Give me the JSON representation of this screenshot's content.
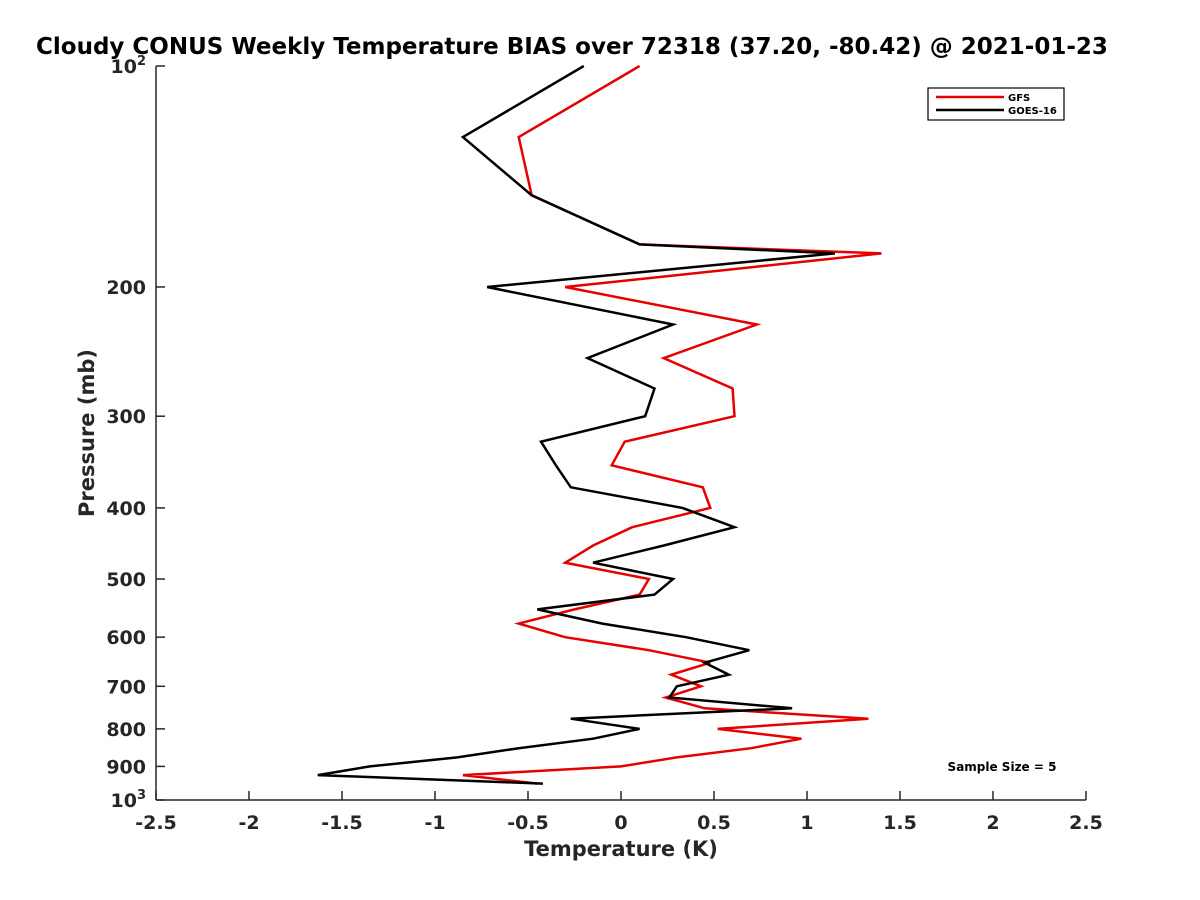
{
  "chart_data": {
    "type": "line",
    "title": "Cloudy CONUS Weekly Temperature BIAS over 72318 (37.20, -80.42) @ 2021-01-23",
    "xlabel": "Temperature (K)",
    "ylabel": "Pressure (mb)",
    "xlim": [
      -2.5,
      2.5
    ],
    "ylim": [
      100,
      1000
    ],
    "yscale": "log",
    "y_reversed": true,
    "x_ticks": [
      -2.5,
      -2,
      -1.5,
      -1,
      -0.5,
      0,
      0.5,
      1,
      1.5,
      2,
      2.5
    ],
    "x_tick_labels": [
      "-2.5",
      "-2",
      "-1.5",
      "-1",
      "-0.5",
      "0",
      "0.5",
      "1",
      "1.5",
      "2",
      "2.5"
    ],
    "y_ticks": [
      100,
      200,
      300,
      400,
      500,
      600,
      700,
      800,
      900,
      1000
    ],
    "y_tick_labels": [
      {
        "base": "10",
        "exp": "2"
      },
      {
        "base": "200"
      },
      {
        "base": "300"
      },
      {
        "base": "400"
      },
      {
        "base": "500"
      },
      {
        "base": "600"
      },
      {
        "base": "700"
      },
      {
        "base": "800"
      },
      {
        "base": "900"
      },
      {
        "base": "10",
        "exp": "3"
      }
    ],
    "grid": false,
    "legend_position": "top-right",
    "annotation": "Sample Size = 5",
    "series": [
      {
        "name": "GFS",
        "color": "#e60000",
        "points": [
          {
            "x": 0.1,
            "p": 100
          },
          {
            "x": -0.55,
            "p": 125
          },
          {
            "x": -0.48,
            "p": 150
          },
          {
            "x": 0.1,
            "p": 175
          },
          {
            "x": 1.4,
            "p": 180
          },
          {
            "x": -0.3,
            "p": 200
          },
          {
            "x": 0.73,
            "p": 225
          },
          {
            "x": 0.23,
            "p": 250
          },
          {
            "x": 0.6,
            "p": 275
          },
          {
            "x": 0.61,
            "p": 300
          },
          {
            "x": 0.02,
            "p": 325
          },
          {
            "x": -0.05,
            "p": 350
          },
          {
            "x": 0.44,
            "p": 375
          },
          {
            "x": 0.48,
            "p": 400
          },
          {
            "x": 0.06,
            "p": 425
          },
          {
            "x": -0.15,
            "p": 450
          },
          {
            "x": -0.3,
            "p": 475
          },
          {
            "x": 0.15,
            "p": 500
          },
          {
            "x": 0.1,
            "p": 525
          },
          {
            "x": -0.25,
            "p": 550
          },
          {
            "x": -0.55,
            "p": 575
          },
          {
            "x": -0.3,
            "p": 600
          },
          {
            "x": 0.15,
            "p": 625
          },
          {
            "x": 0.48,
            "p": 650
          },
          {
            "x": 0.27,
            "p": 675
          },
          {
            "x": 0.43,
            "p": 700
          },
          {
            "x": 0.24,
            "p": 725
          },
          {
            "x": 0.45,
            "p": 750
          },
          {
            "x": 1.33,
            "p": 775
          },
          {
            "x": 0.52,
            "p": 800
          },
          {
            "x": 0.97,
            "p": 825
          },
          {
            "x": 0.7,
            "p": 850
          },
          {
            "x": 0.3,
            "p": 875
          },
          {
            "x": 0.0,
            "p": 900
          },
          {
            "x": -0.85,
            "p": 925
          },
          {
            "x": -0.45,
            "p": 950
          }
        ]
      },
      {
        "name": "GOES-16",
        "color": "#000000",
        "points": [
          {
            "x": -0.2,
            "p": 100
          },
          {
            "x": -0.85,
            "p": 125
          },
          {
            "x": -0.48,
            "p": 150
          },
          {
            "x": 0.1,
            "p": 175
          },
          {
            "x": 1.15,
            "p": 180
          },
          {
            "x": -0.72,
            "p": 200
          },
          {
            "x": 0.28,
            "p": 225
          },
          {
            "x": -0.18,
            "p": 250
          },
          {
            "x": 0.18,
            "p": 275
          },
          {
            "x": 0.13,
            "p": 300
          },
          {
            "x": -0.43,
            "p": 325
          },
          {
            "x": -0.35,
            "p": 350
          },
          {
            "x": -0.27,
            "p": 375
          },
          {
            "x": 0.33,
            "p": 400
          },
          {
            "x": 0.61,
            "p": 425
          },
          {
            "x": 0.23,
            "p": 450
          },
          {
            "x": -0.15,
            "p": 475
          },
          {
            "x": 0.28,
            "p": 500
          },
          {
            "x": 0.18,
            "p": 525
          },
          {
            "x": -0.45,
            "p": 550
          },
          {
            "x": -0.1,
            "p": 575
          },
          {
            "x": 0.35,
            "p": 600
          },
          {
            "x": 0.69,
            "p": 625
          },
          {
            "x": 0.45,
            "p": 650
          },
          {
            "x": 0.58,
            "p": 675
          },
          {
            "x": 0.3,
            "p": 700
          },
          {
            "x": 0.26,
            "p": 725
          },
          {
            "x": 0.92,
            "p": 750
          },
          {
            "x": -0.27,
            "p": 775
          },
          {
            "x": 0.1,
            "p": 800
          },
          {
            "x": -0.15,
            "p": 825
          },
          {
            "x": -0.55,
            "p": 850
          },
          {
            "x": -0.88,
            "p": 875
          },
          {
            "x": -1.35,
            "p": 900
          },
          {
            "x": -1.63,
            "p": 925
          },
          {
            "x": -0.42,
            "p": 950
          }
        ]
      }
    ]
  }
}
